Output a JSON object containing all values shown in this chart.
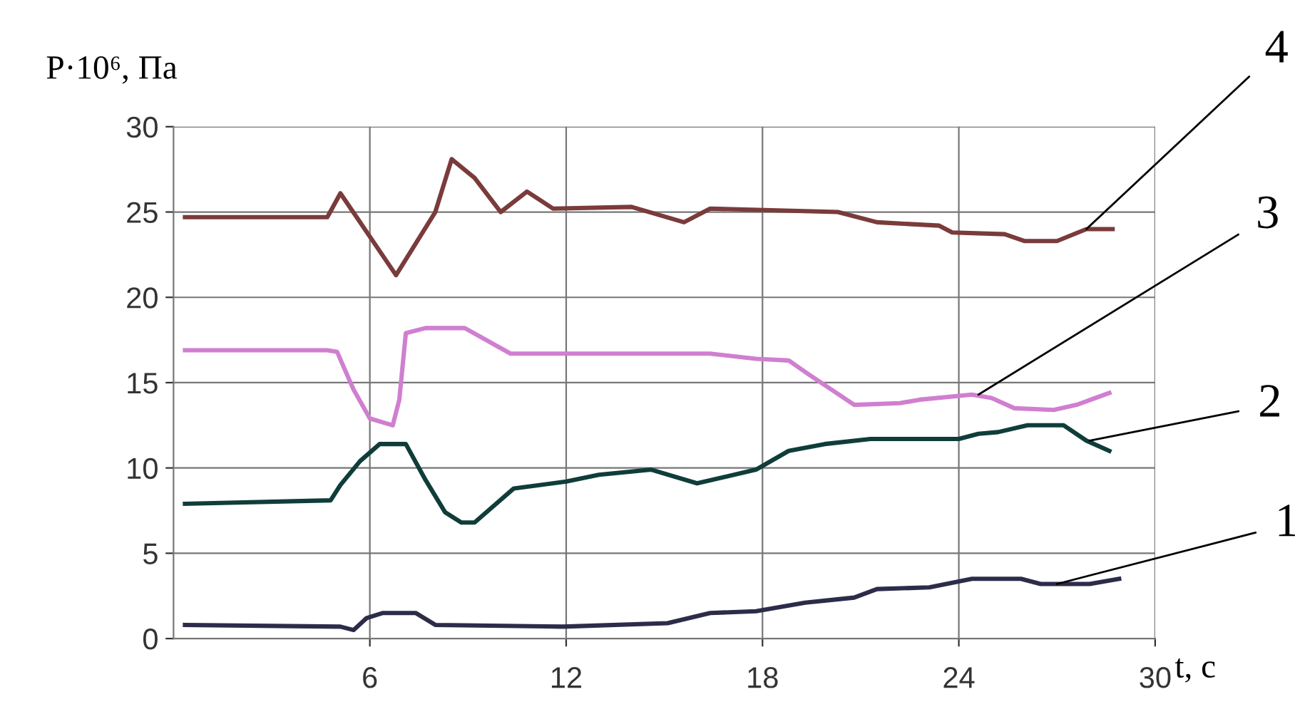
{
  "chart_data": {
    "type": "line",
    "ylabel": "P·10⁶, Па",
    "xlabel": "t, с",
    "xlim": [
      0,
      30
    ],
    "xticks": [
      6,
      12,
      18,
      24,
      30
    ],
    "ylim": [
      0,
      30
    ],
    "yticks": [
      0,
      5,
      10,
      15,
      20,
      25,
      30
    ],
    "grid": true,
    "legend": false,
    "marker": "none",
    "line_style": "solid",
    "series": [
      {
        "color": "#2c2c4a",
        "x": [
          0.35,
          5.1,
          5.5,
          5.9,
          6.4,
          7.4,
          8.0,
          11.9,
          15.1,
          16.4,
          17.8,
          19.3,
          20.8,
          21.5,
          23.1,
          24.4,
          25.9,
          26.5,
          28.0,
          28.9
        ],
        "values": [
          0.8,
          0.7,
          0.5,
          1.2,
          1.5,
          1.5,
          0.8,
          0.7,
          0.9,
          1.5,
          1.6,
          2.1,
          2.4,
          2.9,
          3.0,
          3.5,
          3.5,
          3.2,
          3.2,
          3.5
        ]
      },
      {
        "color": "#0f3d3a",
        "x": [
          0.35,
          4.8,
          5.1,
          5.7,
          6.3,
          7.1,
          7.7,
          8.3,
          8.8,
          9.2,
          10.4,
          12.0,
          13.0,
          14.6,
          16.0,
          17.8,
          18.8,
          19.9,
          21.3,
          24.0,
          24.6,
          25.2,
          26.1,
          27.2,
          27.9,
          28.6
        ],
        "values": [
          7.9,
          8.1,
          9.0,
          10.4,
          11.4,
          11.4,
          9.3,
          7.4,
          6.8,
          6.8,
          8.8,
          9.2,
          9.6,
          9.9,
          9.1,
          9.9,
          11.0,
          11.4,
          11.7,
          11.7,
          12.0,
          12.1,
          12.5,
          12.5,
          11.6,
          11.0
        ]
      },
      {
        "color": "#d07fd0",
        "x": [
          0.35,
          4.7,
          5.0,
          5.5,
          6.0,
          6.7,
          6.9,
          7.1,
          7.7,
          8.9,
          10.3,
          16.4,
          17.8,
          18.8,
          19.4,
          20.8,
          22.2,
          22.8,
          24.4,
          25.0,
          25.7,
          26.9,
          27.6,
          28.6
        ],
        "values": [
          16.9,
          16.9,
          16.8,
          14.6,
          12.9,
          12.5,
          14.0,
          17.9,
          18.2,
          18.2,
          16.7,
          16.7,
          16.4,
          16.3,
          15.5,
          13.7,
          13.8,
          14.0,
          14.3,
          14.1,
          13.5,
          13.4,
          13.7,
          14.4
        ]
      },
      {
        "color": "#7a3b3b",
        "x": [
          0.35,
          4.7,
          5.1,
          6.8,
          8.0,
          8.5,
          9.2,
          10.0,
          10.8,
          11.6,
          14.0,
          15.6,
          16.4,
          20.3,
          21.5,
          23.4,
          23.8,
          25.4,
          26.0,
          27.0,
          27.9,
          28.7
        ],
        "values": [
          24.7,
          24.7,
          26.1,
          21.3,
          25.0,
          28.1,
          27.0,
          25.0,
          26.2,
          25.2,
          25.3,
          24.4,
          25.2,
          25.0,
          24.4,
          24.2,
          23.8,
          23.7,
          23.3,
          23.3,
          24.0,
          24.0
        ]
      }
    ],
    "annotations": [
      {
        "text": "1",
        "x": 27.0,
        "y": 3.2
      },
      {
        "text": "2",
        "x": 28.0,
        "y": 11.6
      },
      {
        "text": "3",
        "x": 24.6,
        "y": 14.3
      },
      {
        "text": "4",
        "x": 27.9,
        "y": 24.0
      }
    ]
  }
}
